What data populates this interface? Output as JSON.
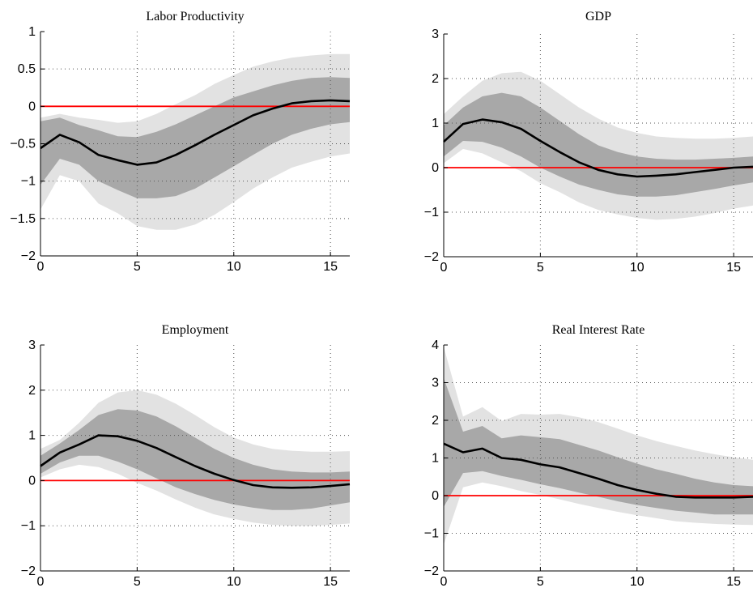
{
  "chart_data": [
    {
      "type": "line",
      "title": "Labor Productivity",
      "xlabel": "",
      "ylabel": "",
      "xlim": [
        0,
        16
      ],
      "ylim": [
        -2,
        1
      ],
      "xticks": [
        0,
        5,
        10,
        15
      ],
      "yticks": [
        -2,
        -1.5,
        -1,
        -0.5,
        0,
        0.5,
        1
      ],
      "ytick_labels": [
        "−2",
        "−1.5",
        "−1",
        "−0.5",
        "0",
        "0.5",
        "1"
      ],
      "grid": true,
      "reference_line": {
        "y": 0,
        "color": "#ff0000"
      },
      "x": [
        0,
        1,
        2,
        3,
        4,
        5,
        6,
        7,
        8,
        9,
        10,
        11,
        12,
        13,
        14,
        15,
        16
      ],
      "median": [
        -0.56,
        -0.38,
        -0.48,
        -0.65,
        -0.72,
        -0.78,
        -0.75,
        -0.65,
        -0.52,
        -0.38,
        -0.25,
        -0.12,
        -0.03,
        0.04,
        0.07,
        0.08,
        0.07
      ],
      "band_inner_upper": [
        -0.2,
        -0.15,
        -0.25,
        -0.32,
        -0.4,
        -0.41,
        -0.34,
        -0.24,
        -0.12,
        0.0,
        0.12,
        0.2,
        0.28,
        0.34,
        0.38,
        0.39,
        0.38
      ],
      "band_inner_lower": [
        -1.05,
        -0.7,
        -0.78,
        -1.0,
        -1.12,
        -1.23,
        -1.23,
        -1.2,
        -1.1,
        -0.95,
        -0.8,
        -0.65,
        -0.5,
        -0.38,
        -0.3,
        -0.24,
        -0.21
      ],
      "band_outer_upper": [
        -0.15,
        -0.1,
        -0.15,
        -0.18,
        -0.22,
        -0.2,
        -0.1,
        0.03,
        0.15,
        0.3,
        0.42,
        0.53,
        0.6,
        0.65,
        0.68,
        0.7,
        0.7
      ],
      "band_outer_lower": [
        -1.38,
        -0.92,
        -1.0,
        -1.3,
        -1.43,
        -1.6,
        -1.65,
        -1.65,
        -1.58,
        -1.45,
        -1.28,
        -1.1,
        -0.95,
        -0.82,
        -0.74,
        -0.67,
        -0.63
      ],
      "colors": {
        "median": "#000000",
        "inner_band": "#a8a8a8",
        "outer_band": "#e2e2e2",
        "reference": "#ff0000"
      }
    },
    {
      "type": "line",
      "title": "GDP",
      "xlabel": "",
      "ylabel": "",
      "xlim": [
        0,
        16
      ],
      "ylim": [
        -2,
        3
      ],
      "xticks": [
        0,
        5,
        10,
        15
      ],
      "yticks": [
        -2,
        -1,
        0,
        1,
        2,
        3
      ],
      "ytick_labels": [
        "−2",
        "−1",
        "0",
        "1",
        "2",
        "3"
      ],
      "grid": true,
      "reference_line": {
        "y": 0,
        "color": "#ff0000"
      },
      "x": [
        0,
        1,
        2,
        3,
        4,
        5,
        6,
        7,
        8,
        9,
        10,
        11,
        12,
        13,
        14,
        15,
        16
      ],
      "median": [
        0.58,
        0.98,
        1.08,
        1.02,
        0.87,
        0.6,
        0.35,
        0.12,
        -0.05,
        -0.15,
        -0.2,
        -0.18,
        -0.15,
        -0.1,
        -0.05,
        0.0,
        0.02
      ],
      "band_inner_upper": [
        0.95,
        1.35,
        1.6,
        1.68,
        1.6,
        1.35,
        1.05,
        0.75,
        0.5,
        0.35,
        0.25,
        0.2,
        0.18,
        0.18,
        0.2,
        0.22,
        0.25
      ],
      "band_inner_lower": [
        0.25,
        0.6,
        0.58,
        0.45,
        0.25,
        0.0,
        -0.2,
        -0.38,
        -0.5,
        -0.6,
        -0.65,
        -0.65,
        -0.62,
        -0.55,
        -0.48,
        -0.4,
        -0.33
      ],
      "band_outer_upper": [
        1.2,
        1.6,
        1.95,
        2.12,
        2.15,
        1.95,
        1.65,
        1.35,
        1.1,
        0.9,
        0.78,
        0.7,
        0.67,
        0.65,
        0.65,
        0.67,
        0.7
      ],
      "band_outer_lower": [
        0.1,
        0.42,
        0.32,
        0.12,
        -0.08,
        -0.35,
        -0.55,
        -0.78,
        -0.95,
        -1.05,
        -1.13,
        -1.17,
        -1.15,
        -1.1,
        -1.02,
        -0.92,
        -0.85
      ],
      "colors": {
        "median": "#000000",
        "inner_band": "#a8a8a8",
        "outer_band": "#e2e2e2",
        "reference": "#ff0000"
      }
    },
    {
      "type": "line",
      "title": "Employment",
      "xlabel": "",
      "ylabel": "",
      "xlim": [
        0,
        16
      ],
      "ylim": [
        -2,
        3
      ],
      "xticks": [
        0,
        5,
        10,
        15
      ],
      "yticks": [
        -2,
        -1,
        0,
        1,
        2,
        3
      ],
      "ytick_labels": [
        "−2",
        "−1",
        "0",
        "1",
        "2",
        "3"
      ],
      "grid": true,
      "reference_line": {
        "y": 0,
        "color": "#ff0000"
      },
      "x": [
        0,
        1,
        2,
        3,
        4,
        5,
        6,
        7,
        8,
        9,
        10,
        11,
        12,
        13,
        14,
        15,
        16
      ],
      "median": [
        0.32,
        0.62,
        0.8,
        1.0,
        0.98,
        0.88,
        0.72,
        0.52,
        0.32,
        0.15,
        0.01,
        -0.1,
        -0.15,
        -0.16,
        -0.15,
        -0.12,
        -0.08
      ],
      "band_inner_upper": [
        0.55,
        0.82,
        1.12,
        1.45,
        1.58,
        1.55,
        1.42,
        1.2,
        0.95,
        0.7,
        0.5,
        0.35,
        0.25,
        0.2,
        0.18,
        0.18,
        0.2
      ],
      "band_inner_lower": [
        0.15,
        0.4,
        0.55,
        0.55,
        0.42,
        0.25,
        0.05,
        -0.15,
        -0.3,
        -0.43,
        -0.53,
        -0.6,
        -0.65,
        -0.65,
        -0.62,
        -0.55,
        -0.48
      ],
      "band_outer_upper": [
        0.7,
        0.9,
        1.28,
        1.72,
        1.95,
        2.0,
        1.9,
        1.7,
        1.45,
        1.18,
        0.95,
        0.8,
        0.7,
        0.66,
        0.64,
        0.64,
        0.65
      ],
      "band_outer_lower": [
        0.07,
        0.25,
        0.35,
        0.3,
        0.15,
        -0.05,
        -0.22,
        -0.42,
        -0.6,
        -0.75,
        -0.85,
        -0.93,
        -0.98,
        -1.0,
        -1.0,
        -0.98,
        -0.95
      ],
      "colors": {
        "median": "#000000",
        "inner_band": "#a8a8a8",
        "outer_band": "#e2e2e2",
        "reference": "#ff0000"
      }
    },
    {
      "type": "line",
      "title": "Real Interest Rate",
      "xlabel": "",
      "ylabel": "",
      "xlim": [
        0,
        16
      ],
      "ylim": [
        -2,
        4
      ],
      "xticks": [
        0,
        5,
        10,
        15
      ],
      "yticks": [
        -2,
        -1,
        0,
        1,
        2,
        3,
        4
      ],
      "ytick_labels": [
        "−2",
        "−1",
        "0",
        "1",
        "2",
        "3",
        "4"
      ],
      "grid": true,
      "reference_line": {
        "y": 0,
        "color": "#ff0000"
      },
      "x": [
        0,
        1,
        2,
        3,
        4,
        5,
        6,
        7,
        8,
        9,
        10,
        11,
        12,
        13,
        14,
        15,
        16
      ],
      "median": [
        1.38,
        1.15,
        1.25,
        1.0,
        0.95,
        0.83,
        0.75,
        0.6,
        0.45,
        0.28,
        0.15,
        0.05,
        -0.03,
        -0.05,
        -0.05,
        -0.05,
        -0.03
      ],
      "band_inner_upper": [
        3.12,
        1.7,
        1.85,
        1.52,
        1.6,
        1.55,
        1.5,
        1.35,
        1.2,
        1.02,
        0.85,
        0.7,
        0.58,
        0.45,
        0.35,
        0.28,
        0.25
      ],
      "band_inner_lower": [
        -0.3,
        0.6,
        0.65,
        0.52,
        0.42,
        0.3,
        0.2,
        0.08,
        -0.03,
        -0.15,
        -0.25,
        -0.33,
        -0.4,
        -0.45,
        -0.5,
        -0.5,
        -0.5
      ],
      "band_outer_upper": [
        3.95,
        2.1,
        2.35,
        1.98,
        2.17,
        2.15,
        2.17,
        2.08,
        1.95,
        1.78,
        1.6,
        1.45,
        1.32,
        1.2,
        1.1,
        1.02,
        0.95
      ],
      "band_outer_lower": [
        -1.3,
        0.22,
        0.35,
        0.25,
        0.12,
        0.02,
        -0.1,
        -0.22,
        -0.33,
        -0.43,
        -0.52,
        -0.6,
        -0.68,
        -0.72,
        -0.75,
        -0.77,
        -0.78
      ],
      "colors": {
        "median": "#000000",
        "inner_band": "#a8a8a8",
        "outer_band": "#e2e2e2",
        "reference": "#ff0000"
      }
    }
  ]
}
